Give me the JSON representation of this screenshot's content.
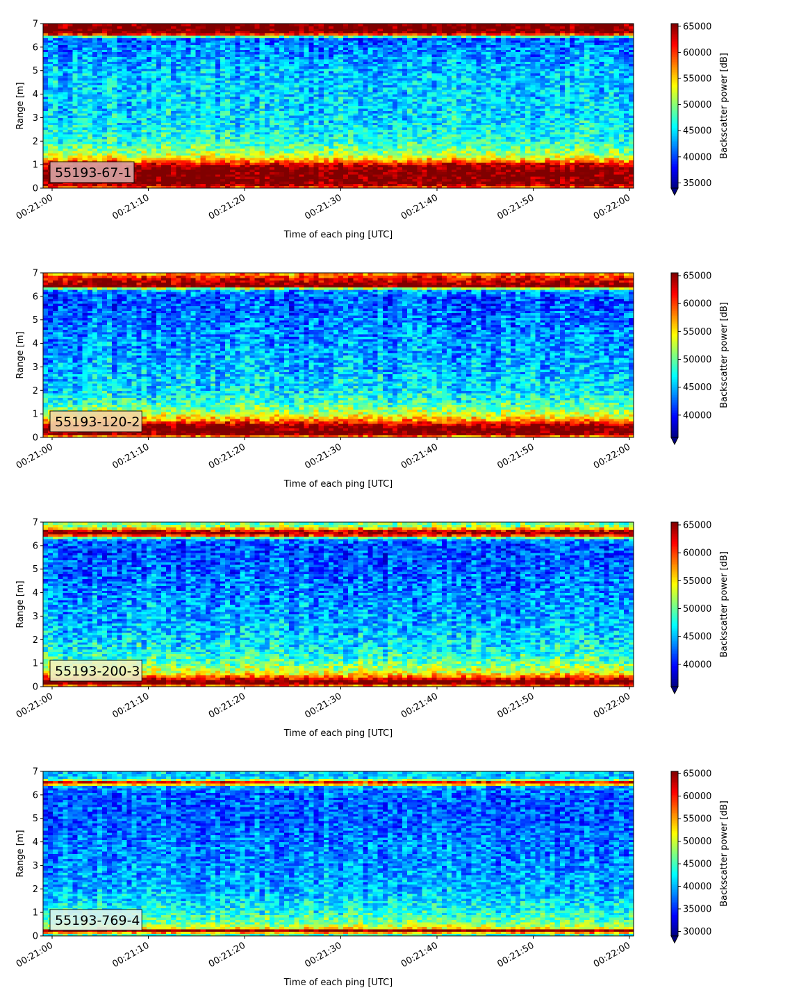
{
  "chart_data": [
    {
      "type": "heatmap",
      "label": "55193-67-1",
      "xlabel": "Time of each ping [UTC]",
      "ylabel": "Range [m]",
      "colorbar_label": "Backscatter power [dB]",
      "colormap": "jet",
      "x_range": [
        "00:21:00",
        "00:22:00"
      ],
      "xticks": [
        "00:21:00",
        "00:21:10",
        "00:21:20",
        "00:21:30",
        "00:21:40",
        "00:21:50",
        "00:22:00"
      ],
      "ylim": [
        0,
        7
      ],
      "yticks": [
        "0",
        "1",
        "2",
        "3",
        "4",
        "5",
        "6",
        "7"
      ],
      "clim": [
        34000,
        65500
      ],
      "cticks": [
        35000,
        40000,
        45000,
        50000,
        55000,
        60000,
        65000
      ],
      "label_box_color": "#d9a5a5",
      "profile": {
        "range_m": [
          0.0,
          0.2,
          0.3,
          0.8,
          1.0,
          1.2,
          1.4,
          1.6,
          2.0,
          2.5,
          3.0,
          4.0,
          5.0,
          5.5,
          6.0,
          6.4,
          6.5,
          6.6,
          7.0
        ],
        "power": [
          58000,
          66000,
          66000,
          66000,
          64000,
          56000,
          52000,
          50000,
          47000,
          46000,
          45000,
          44500,
          44000,
          43000,
          42000,
          41000,
          55000,
          66000,
          66000
        ]
      },
      "noise": 4500
    },
    {
      "type": "heatmap",
      "label": "55193-120-2",
      "xlabel": "Time of each ping [UTC]",
      "ylabel": "Range [m]",
      "colorbar_label": "Backscatter power [dB]",
      "colormap": "jet",
      "x_range": [
        "00:21:00",
        "00:22:00"
      ],
      "xticks": [
        "00:21:00",
        "00:21:10",
        "00:21:20",
        "00:21:30",
        "00:21:40",
        "00:21:50",
        "00:22:00"
      ],
      "ylim": [
        0,
        7
      ],
      "yticks": [
        "0",
        "1",
        "2",
        "3",
        "4",
        "5",
        "6",
        "7"
      ],
      "clim": [
        36000,
        65500
      ],
      "cticks": [
        40000,
        45000,
        50000,
        55000,
        60000,
        65000
      ],
      "label_box_color": "#f2d6a8",
      "profile": {
        "range_m": [
          0.0,
          0.1,
          0.5,
          0.6,
          0.8,
          1.0,
          1.3,
          1.6,
          2.0,
          3.0,
          4.0,
          5.0,
          6.0,
          6.3,
          6.45,
          6.8,
          7.0
        ],
        "power": [
          50000,
          66000,
          66000,
          62000,
          56000,
          53000,
          50000,
          48000,
          46500,
          45000,
          44000,
          43000,
          42000,
          45000,
          66000,
          62000,
          56000
        ]
      },
      "noise": 4500
    },
    {
      "type": "heatmap",
      "label": "55193-200-3",
      "xlabel": "Time of each ping [UTC]",
      "ylabel": "Range [m]",
      "colorbar_label": "Backscatter power [dB]",
      "colormap": "jet",
      "x_range": [
        "00:21:00",
        "00:22:00"
      ],
      "xticks": [
        "00:21:00",
        "00:21:10",
        "00:21:20",
        "00:21:30",
        "00:21:40",
        "00:21:50",
        "00:22:00"
      ],
      "ylim": [
        0,
        7
      ],
      "yticks": [
        "0",
        "1",
        "2",
        "3",
        "4",
        "5",
        "6",
        "7"
      ],
      "clim": [
        36000,
        65500
      ],
      "cticks": [
        40000,
        45000,
        50000,
        55000,
        60000,
        65000
      ],
      "label_box_color": "#eef2c8",
      "profile": {
        "range_m": [
          0.0,
          0.1,
          0.25,
          0.4,
          0.6,
          1.0,
          1.5,
          2.0,
          3.0,
          4.0,
          5.0,
          6.0,
          6.3,
          6.5,
          6.7,
          6.8,
          7.0
        ],
        "power": [
          52000,
          66000,
          66000,
          60000,
          54000,
          50000,
          47500,
          46000,
          44500,
          43500,
          42500,
          42000,
          44000,
          66000,
          62000,
          52000,
          50000
        ]
      },
      "noise": 4500
    },
    {
      "type": "heatmap",
      "label": "55193-769-4",
      "xlabel": "Time of each ping [UTC]",
      "ylabel": "Range [m]",
      "colorbar_label": "Backscatter power [dB]",
      "colormap": "jet",
      "x_range": [
        "00:21:00",
        "00:22:00"
      ],
      "xticks": [
        "00:21:00",
        "00:21:10",
        "00:21:20",
        "00:21:30",
        "00:21:40",
        "00:21:50",
        "00:22:00"
      ],
      "ylim": [
        0,
        7
      ],
      "yticks": [
        "0",
        "1",
        "2",
        "3",
        "4",
        "5",
        "6",
        "7"
      ],
      "clim": [
        29000,
        65500
      ],
      "cticks": [
        30000,
        35000,
        40000,
        45000,
        50000,
        55000,
        60000,
        65000
      ],
      "label_box_color": "#dcf2ef",
      "profile": {
        "range_m": [
          0.0,
          0.15,
          0.25,
          0.35,
          0.5,
          0.8,
          1.2,
          1.6,
          2.0,
          3.0,
          4.0,
          5.0,
          6.0,
          6.4,
          6.5,
          6.6,
          6.7,
          7.0
        ],
        "power": [
          40000,
          55000,
          66000,
          52000,
          48000,
          45000,
          43000,
          41500,
          40000,
          39000,
          38000,
          37000,
          37000,
          40000,
          66000,
          55000,
          42000,
          41000
        ]
      },
      "noise": 5000
    }
  ]
}
